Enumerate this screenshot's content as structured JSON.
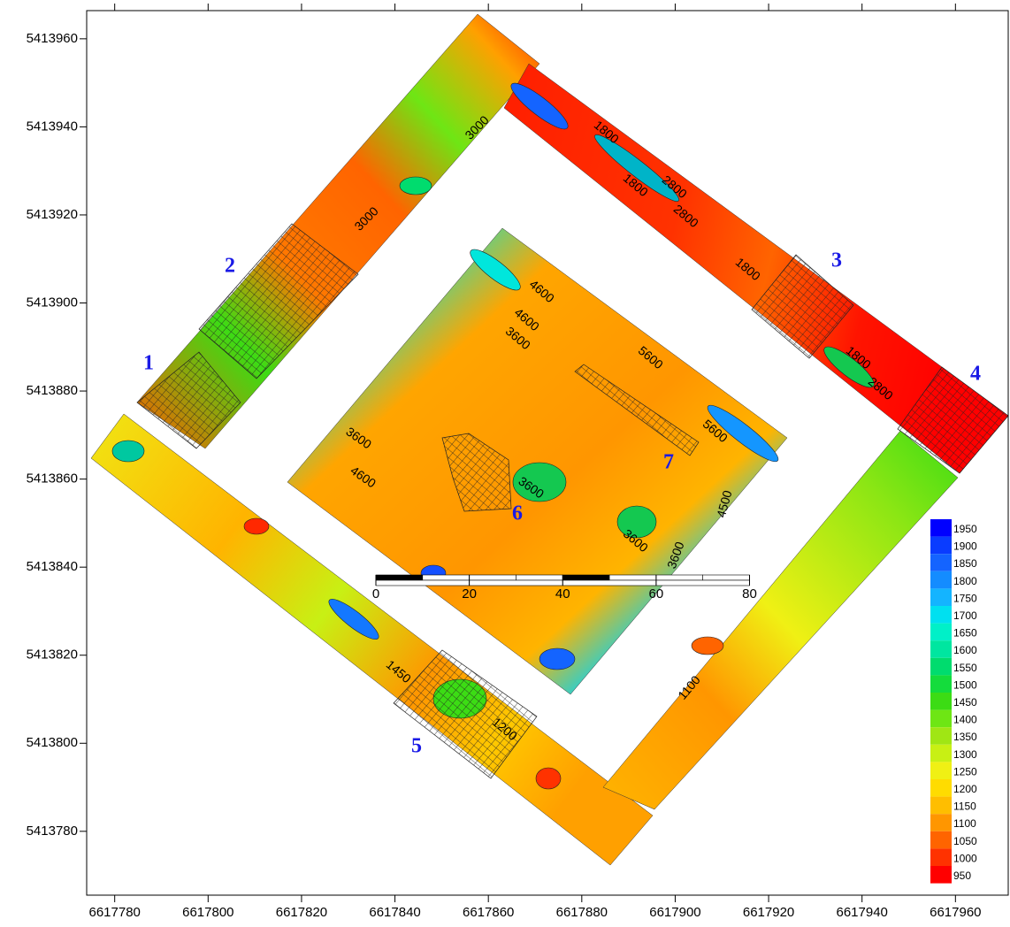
{
  "map": {
    "axes": {
      "xlim": [
        6617774,
        6617971.3
      ],
      "ylim": [
        5413765.5,
        5413966.4
      ],
      "xticks": [
        6617780,
        6617800,
        6617820,
        6617840,
        6617860,
        6617880,
        6617900,
        6617920,
        6617940,
        6617960
      ],
      "yticks": [
        5413780,
        5413800,
        5413820,
        5413840,
        5413860,
        5413880,
        5413900,
        5413920,
        5413940,
        5413960
      ]
    },
    "legend": {
      "levels": [
        1950,
        1900,
        1850,
        1800,
        1750,
        1700,
        1650,
        1600,
        1550,
        1500,
        1450,
        1400,
        1350,
        1300,
        1250,
        1200,
        1150,
        1100,
        1050,
        1000,
        950
      ],
      "colors": [
        "#0000ff",
        "#0a3cff",
        "#1464ff",
        "#148cff",
        "#14b4ff",
        "#00e0f0",
        "#00f0c8",
        "#00e6a0",
        "#00dc6e",
        "#14dc3c",
        "#3cdc14",
        "#6ee614",
        "#a0e614",
        "#c8f014",
        "#f0f014",
        "#ffdc00",
        "#ffbe00",
        "#ff9600",
        "#ff6400",
        "#ff3200",
        "#ff0000"
      ]
    },
    "zones": [
      "1",
      "2",
      "3",
      "4",
      "5",
      "6",
      "7"
    ],
    "contour_labels": [
      3000,
      3000,
      1800,
      2800,
      1800,
      2800,
      1800,
      1800,
      2800,
      4600,
      4600,
      3600,
      5600,
      5600,
      3600,
      4600,
      3600,
      4500,
      3600,
      3600,
      1450,
      1200,
      1100
    ],
    "scale_bar": {
      "ticks": [
        0,
        20,
        40,
        60,
        80
      ]
    }
  }
}
